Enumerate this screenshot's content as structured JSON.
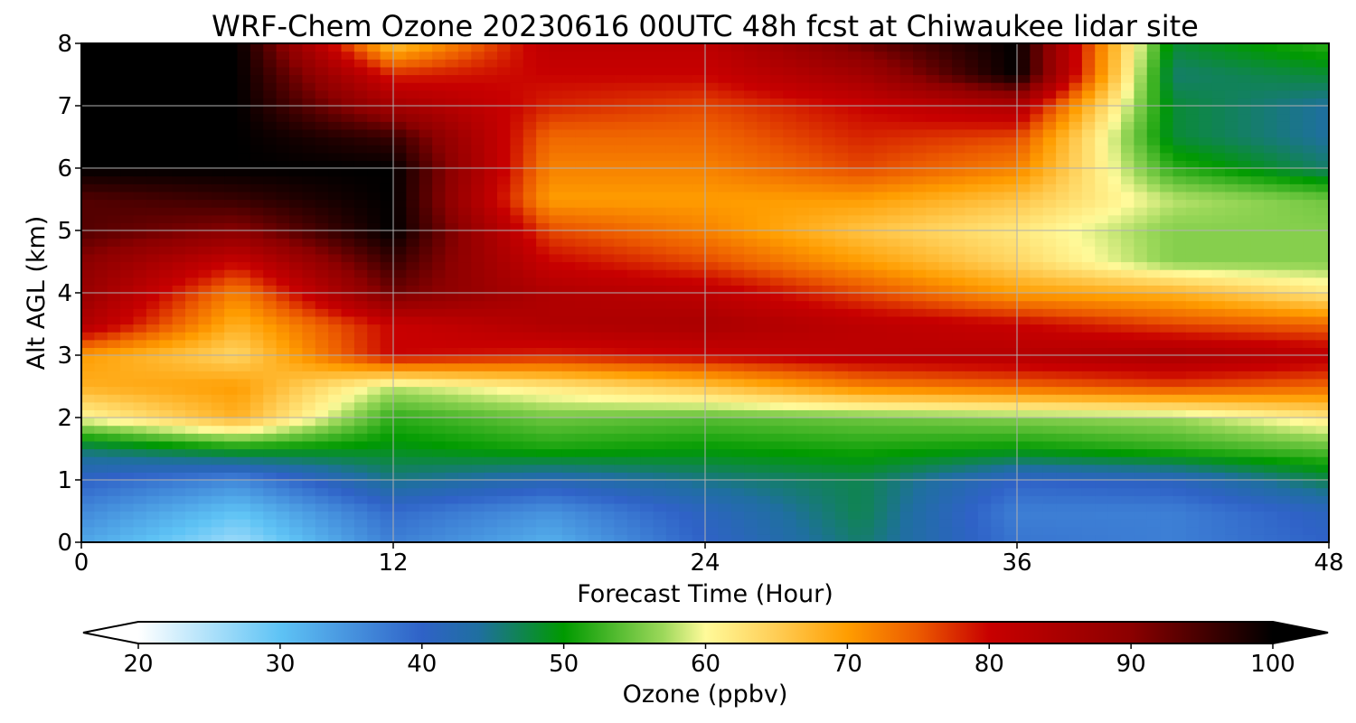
{
  "chart_data": {
    "type": "heatmap",
    "title": "WRF-Chem Ozone  20230616 00UTC 48h fcst at Chiwaukee lidar site",
    "xlabel": "Forecast Time (Hour)",
    "ylabel": "Alt AGL (km)",
    "xlim": [
      0,
      48
    ],
    "ylim": [
      0,
      8
    ],
    "x_ticks": [
      0,
      12,
      24,
      36,
      48
    ],
    "y_ticks": [
      0,
      1,
      2,
      3,
      4,
      5,
      6,
      7,
      8
    ],
    "grid": true,
    "x": [
      0,
      6,
      12,
      18,
      24,
      30,
      36,
      42,
      48
    ],
    "y": [
      0,
      0.5,
      1,
      1.5,
      2,
      2.5,
      3,
      3.5,
      4,
      4.5,
      5,
      5.5,
      6,
      6.5,
      7,
      7.5,
      8
    ],
    "z": [
      [
        33,
        26,
        37,
        32,
        40,
        46,
        38,
        37,
        40
      ],
      [
        36,
        30,
        39,
        35,
        41,
        47,
        37,
        37,
        41
      ],
      [
        40,
        36,
        45,
        42,
        45,
        47,
        40,
        41,
        47
      ],
      [
        46,
        50,
        49,
        51,
        50,
        51,
        50,
        52,
        54
      ],
      [
        60,
        68,
        52,
        55,
        54,
        55,
        56,
        57,
        62
      ],
      [
        68,
        70,
        58,
        62,
        66,
        72,
        74,
        76,
        74
      ],
      [
        70,
        64,
        80,
        78,
        80,
        82,
        83,
        85,
        82
      ],
      [
        84,
        68,
        80,
        84,
        85,
        82,
        80,
        76,
        74
      ],
      [
        88,
        72,
        92,
        84,
        82,
        76,
        70,
        68,
        62
      ],
      [
        90,
        80,
        96,
        80,
        76,
        70,
        64,
        56,
        56
      ],
      [
        94,
        90,
        100,
        76,
        72,
        66,
        62,
        56,
        56
      ],
      [
        94,
        96,
        100,
        70,
        70,
        70,
        66,
        58,
        55
      ],
      [
        100,
        100,
        100,
        72,
        72,
        76,
        72,
        52,
        46
      ],
      [
        100,
        100,
        96,
        74,
        74,
        78,
        76,
        48,
        44
      ],
      [
        100,
        100,
        86,
        78,
        76,
        80,
        84,
        48,
        44
      ],
      [
        100,
        100,
        78,
        80,
        80,
        86,
        100,
        46,
        48
      ],
      [
        100,
        100,
        66,
        82,
        82,
        92,
        100,
        48,
        52
      ]
    ],
    "colorbar": {
      "label": "Ozone  (ppbv)",
      "range": [
        20,
        100
      ],
      "ticks": [
        20,
        30,
        40,
        50,
        60,
        70,
        80,
        90,
        100
      ],
      "extend": "both",
      "stops": [
        {
          "v": 20,
          "c": "#ffffff"
        },
        {
          "v": 30,
          "c": "#5ec3f5"
        },
        {
          "v": 40,
          "c": "#2f62c7"
        },
        {
          "v": 44,
          "c": "#1f6fa0"
        },
        {
          "v": 50,
          "c": "#009a00"
        },
        {
          "v": 57,
          "c": "#9cd85a"
        },
        {
          "v": 60,
          "c": "#fffa9a"
        },
        {
          "v": 65,
          "c": "#ffcd55"
        },
        {
          "v": 70,
          "c": "#ff9d00"
        },
        {
          "v": 75,
          "c": "#ec5a00"
        },
        {
          "v": 80,
          "c": "#c80000"
        },
        {
          "v": 90,
          "c": "#8b0000"
        },
        {
          "v": 100,
          "c": "#000000"
        }
      ]
    }
  }
}
